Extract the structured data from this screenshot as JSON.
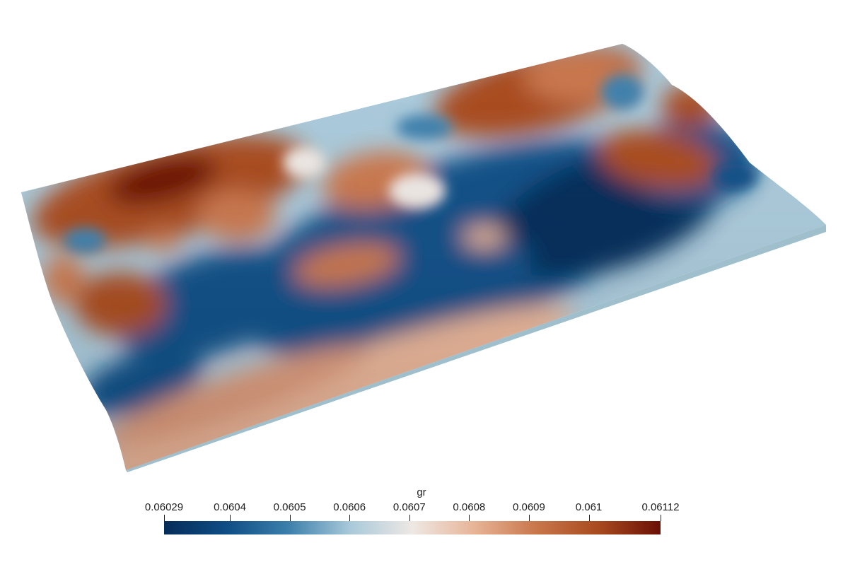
{
  "scene": {
    "colormap": [
      "#062c59",
      "#0e4d85",
      "#3c7fab",
      "#a9c9da",
      "#eee8e4",
      "#e7b497",
      "#c9764b",
      "#a84a1f",
      "#6b0f06"
    ],
    "surface_color_mode": "scalar field gr"
  },
  "colorbar": {
    "title": "gr",
    "range": [
      0.06029,
      0.06112
    ],
    "ticks": [
      {
        "label": "0.06029",
        "value": 0.06029
      },
      {
        "label": "0.0604",
        "value": 0.0604
      },
      {
        "label": "0.0605",
        "value": 0.0605
      },
      {
        "label": "0.0606",
        "value": 0.0606
      },
      {
        "label": "0.0607",
        "value": 0.0607
      },
      {
        "label": "0.0608",
        "value": 0.0608
      },
      {
        "label": "0.0609",
        "value": 0.0609
      },
      {
        "label": "0.061",
        "value": 0.061
      },
      {
        "label": "0.06112",
        "value": 0.06112
      }
    ]
  }
}
